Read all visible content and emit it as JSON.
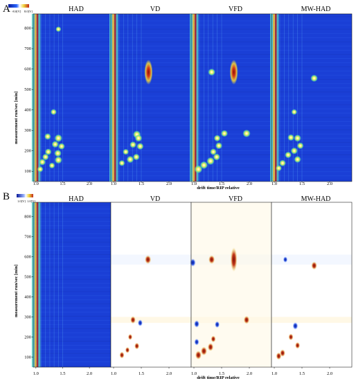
{
  "chart_data": [
    {
      "panel_label": "A",
      "type": "heatmap",
      "plot_kind": "GC-IMS topographic plot",
      "xlabel": "drift time/RIP relative",
      "ylabel": "measurement run/sec [min]",
      "x_ticks": [
        "1.0",
        "1.5",
        "2.0"
      ],
      "y_ticks": [
        "100",
        "200",
        "300",
        "400",
        "500",
        "600",
        "700",
        "800"
      ],
      "xlim": [
        0.95,
        2.4
      ],
      "ylim": [
        50,
        870
      ],
      "colorbar": {
        "min_label": "-8.0[V]",
        "max_label": "8.0[V]"
      },
      "colors": {
        "background": "#1a3fd6",
        "high": "#c0281a",
        "mid": "#f0e640"
      },
      "subplots": [
        {
          "title": "HAD",
          "peaks": [
            {
              "x": 1.42,
              "y": 795,
              "i": 0.5
            },
            {
              "x": 1.33,
              "y": 390,
              "i": 0.6
            },
            {
              "x": 1.22,
              "y": 270,
              "i": 0.7
            },
            {
              "x": 1.42,
              "y": 262,
              "i": 0.9
            },
            {
              "x": 1.36,
              "y": 232,
              "i": 0.75
            },
            {
              "x": 1.48,
              "y": 222,
              "i": 0.7
            },
            {
              "x": 1.23,
              "y": 195,
              "i": 0.7
            },
            {
              "x": 1.41,
              "y": 188,
              "i": 0.8
            },
            {
              "x": 1.18,
              "y": 170,
              "i": 0.7
            },
            {
              "x": 1.42,
              "y": 155,
              "i": 0.85
            },
            {
              "x": 1.12,
              "y": 145,
              "i": 0.7
            },
            {
              "x": 1.3,
              "y": 128,
              "i": 0.6
            },
            {
              "x": 1.08,
              "y": 110,
              "i": 0.6
            }
          ]
        },
        {
          "title": "VD",
          "peaks": [
            {
              "x": 1.63,
              "y": 585,
              "i": 1.0
            },
            {
              "x": 1.42,
              "y": 280,
              "i": 0.9
            },
            {
              "x": 1.45,
              "y": 262,
              "i": 0.8
            },
            {
              "x": 1.35,
              "y": 230,
              "i": 0.7
            },
            {
              "x": 1.48,
              "y": 222,
              "i": 0.75
            },
            {
              "x": 1.22,
              "y": 195,
              "i": 0.6
            },
            {
              "x": 1.41,
              "y": 170,
              "i": 0.7
            },
            {
              "x": 1.3,
              "y": 158,
              "i": 0.8
            },
            {
              "x": 1.15,
              "y": 140,
              "i": 0.6
            }
          ]
        },
        {
          "title": "VFD",
          "peaks": [
            {
              "x": 1.72,
              "y": 585,
              "i": 1.0
            },
            {
              "x": 1.32,
              "y": 585,
              "i": 0.8
            },
            {
              "x": 1.95,
              "y": 285,
              "i": 0.9
            },
            {
              "x": 1.55,
              "y": 285,
              "i": 0.75
            },
            {
              "x": 1.42,
              "y": 262,
              "i": 0.7
            },
            {
              "x": 1.45,
              "y": 225,
              "i": 0.75
            },
            {
              "x": 1.35,
              "y": 195,
              "i": 0.7
            },
            {
              "x": 1.41,
              "y": 170,
              "i": 0.75
            },
            {
              "x": 1.3,
              "y": 150,
              "i": 0.9
            },
            {
              "x": 1.18,
              "y": 130,
              "i": 0.9
            },
            {
              "x": 1.08,
              "y": 110,
              "i": 0.95
            }
          ]
        },
        {
          "title": "MW-HAD",
          "peaks": [
            {
              "x": 1.72,
              "y": 555,
              "i": 0.8
            },
            {
              "x": 1.36,
              "y": 390,
              "i": 0.55
            },
            {
              "x": 1.3,
              "y": 265,
              "i": 0.7
            },
            {
              "x": 1.42,
              "y": 262,
              "i": 0.8
            },
            {
              "x": 1.47,
              "y": 225,
              "i": 0.7
            },
            {
              "x": 1.36,
              "y": 200,
              "i": 0.75
            },
            {
              "x": 1.25,
              "y": 180,
              "i": 0.7
            },
            {
              "x": 1.42,
              "y": 158,
              "i": 0.75
            },
            {
              "x": 1.15,
              "y": 140,
              "i": 0.7
            },
            {
              "x": 1.08,
              "y": 115,
              "i": 0.6
            }
          ]
        }
      ]
    },
    {
      "panel_label": "B",
      "type": "heatmap",
      "plot_kind": "GC-IMS difference plot (reference: HAD)",
      "xlabel": "drift time/RIP relative",
      "ylabel": "measurement run/sec [min]",
      "x_ticks": [
        "1.0",
        "1.5",
        "2.0"
      ],
      "y_ticks": [
        "100",
        "200",
        "300",
        "400",
        "500",
        "600",
        "700",
        "800"
      ],
      "xlim": [
        0.95,
        2.4
      ],
      "ylim": [
        50,
        870
      ],
      "colorbar": {
        "min_label": "1.0[V]",
        "max_label": "1.0[V]"
      },
      "colors": {
        "reference_background": "#1a3fd6",
        "difference_background": "#ffffff",
        "increase": "#c0281a",
        "decrease": "#1a3fd6"
      },
      "subplots": [
        {
          "title": "HAD",
          "role": "reference"
        },
        {
          "title": "VD",
          "peaks": [
            {
              "x": 1.62,
              "y": 585,
              "i": 0.9
            },
            {
              "x": 1.35,
              "y": 285,
              "i": 0.7
            },
            {
              "x": 1.48,
              "y": 270,
              "i": -0.6
            },
            {
              "x": 1.3,
              "y": 200,
              "i": 0.5
            },
            {
              "x": 1.42,
              "y": 155,
              "i": 0.6
            },
            {
              "x": 1.15,
              "y": 110,
              "i": 0.6
            },
            {
              "x": 1.25,
              "y": 135,
              "i": 0.5
            }
          ]
        },
        {
          "title": "VFD",
          "peaks": [
            {
              "x": 1.72,
              "y": 585,
              "i": 1.0
            },
            {
              "x": 1.32,
              "y": 585,
              "i": 0.9
            },
            {
              "x": 0.98,
              "y": 570,
              "i": -0.8
            },
            {
              "x": 1.95,
              "y": 285,
              "i": 0.8
            },
            {
              "x": 1.42,
              "y": 262,
              "i": -0.6
            },
            {
              "x": 1.05,
              "y": 265,
              "i": -0.7
            },
            {
              "x": 1.35,
              "y": 190,
              "i": 0.6
            },
            {
              "x": 1.3,
              "y": 150,
              "i": 0.8
            },
            {
              "x": 1.18,
              "y": 130,
              "i": 0.9
            },
            {
              "x": 1.08,
              "y": 110,
              "i": 0.9
            },
            {
              "x": 1.05,
              "y": 175,
              "i": -0.6
            }
          ]
        },
        {
          "title": "MW-HAD",
          "peaks": [
            {
              "x": 1.72,
              "y": 555,
              "i": 0.8
            },
            {
              "x": 1.38,
              "y": 255,
              "i": -0.7
            },
            {
              "x": 1.3,
              "y": 200,
              "i": 0.6
            },
            {
              "x": 1.42,
              "y": 158,
              "i": 0.6
            },
            {
              "x": 1.15,
              "y": 120,
              "i": 0.7
            },
            {
              "x": 1.08,
              "y": 105,
              "i": 0.7
            },
            {
              "x": 1.2,
              "y": 585,
              "i": -0.5
            }
          ]
        }
      ]
    }
  ]
}
